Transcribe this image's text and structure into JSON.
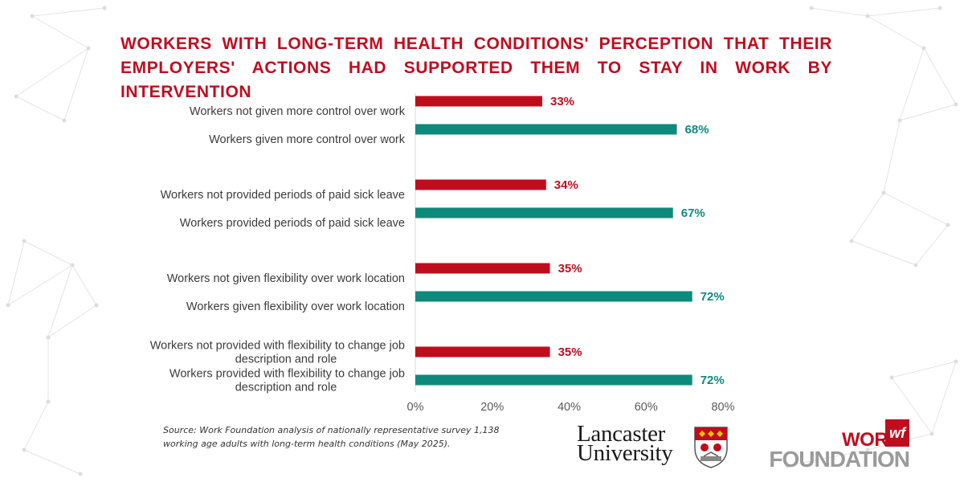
{
  "title": "WORKERS WITH LONG-TERM HEALTH CONDITIONS' PERCEPTION THAT THEIR EMPLOYERS' ACTIONS HAD SUPPORTED THEM TO STAY IN WORK BY INTERVENTION",
  "source": "Source: Work Foundation analysis of nationally representative survey 1,138 working age adults with long-term health conditions (May 2025).",
  "logos": {
    "lancaster_line1": "Lancaster",
    "lancaster_line2": "University",
    "wf_work": "WORK",
    "wf_foundation": "FOUNDATION",
    "wf_mark": "wf"
  },
  "colors": {
    "not_given": "#c00d1e",
    "given": "#0e8a7c",
    "title": "#c00d1e"
  },
  "chart_data": {
    "type": "bar",
    "orientation": "horizontal",
    "title": "WORKERS WITH LONG-TERM HEALTH CONDITIONS' PERCEPTION THAT THEIR EMPLOYERS' ACTIONS HAD SUPPORTED THEM TO STAY IN WORK BY INTERVENTION",
    "xlim": [
      0,
      80
    ],
    "x_ticks": [
      "0%",
      "20%",
      "40%",
      "60%",
      "80%"
    ],
    "x_tick_values": [
      0,
      20,
      40,
      60,
      80
    ],
    "grid": false,
    "legend": "none",
    "groups": [
      {
        "bars": [
          {
            "label": [
              "Workers not given more control over work"
            ],
            "value": 33,
            "display": "33%",
            "group": "not"
          },
          {
            "label": [
              "Workers given more control over work"
            ],
            "value": 68,
            "display": "68%",
            "group": "given"
          }
        ]
      },
      {
        "bars": [
          {
            "label": [
              "Workers not provided periods of paid sick leave"
            ],
            "value": 34,
            "display": "34%",
            "group": "not"
          },
          {
            "label": [
              "Workers provided periods of paid sick leave"
            ],
            "value": 67,
            "display": "67%",
            "group": "given"
          }
        ]
      },
      {
        "bars": [
          {
            "label": [
              "Workers not given flexibility over work location"
            ],
            "value": 35,
            "display": "35%",
            "group": "not"
          },
          {
            "label": [
              "Workers given flexibility over work location"
            ],
            "value": 72,
            "display": "72%",
            "group": "given"
          }
        ]
      },
      {
        "bars": [
          {
            "label": [
              "Workers not provided with flexibility to change job",
              "description and role"
            ],
            "value": 35,
            "display": "35%",
            "group": "not"
          },
          {
            "label": [
              "Workers provided with flexibility to change job",
              "description and role"
            ],
            "value": 72,
            "display": "72%",
            "group": "given"
          }
        ]
      }
    ]
  }
}
